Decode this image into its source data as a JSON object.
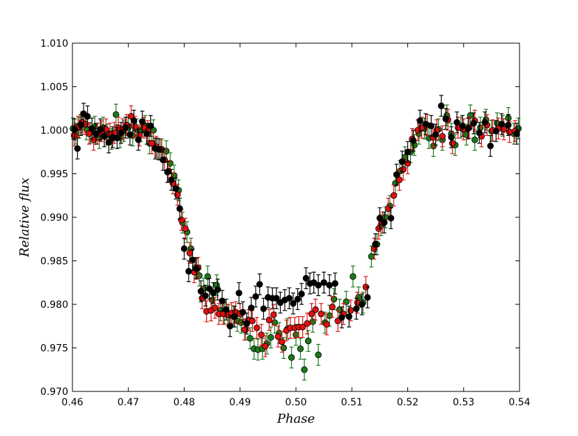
{
  "chart_data": {
    "type": "scatter",
    "title": "",
    "xlabel": "Phase",
    "ylabel": "Relative flux",
    "xlim": [
      0.46,
      0.54
    ],
    "ylim": [
      0.97,
      1.01
    ],
    "x_ticks": [
      0.46,
      0.47,
      0.48,
      0.49,
      0.5,
      0.51,
      0.52,
      0.53,
      0.54
    ],
    "x_tick_labels": [
      "0.46",
      "0.47",
      "0.48",
      "0.49",
      "0.50",
      "0.51",
      "0.52",
      "0.53",
      "0.54"
    ],
    "y_ticks": [
      0.97,
      0.975,
      0.98,
      0.985,
      0.99,
      0.995,
      1.0,
      1.005,
      1.01
    ],
    "y_tick_labels": [
      "0.970",
      "0.975",
      "0.980",
      "0.985",
      "0.990",
      "0.995",
      "1.000",
      "1.005",
      "1.010"
    ],
    "grid": false,
    "legend": "none",
    "series": [
      {
        "color": "#1a7a1a",
        "points": [
          [
            0.4601,
            1.0002
          ],
          [
            0.4606,
            0.9996
          ],
          [
            0.4612,
            1.0003
          ],
          [
            0.4618,
            1.0007
          ],
          [
            0.4625,
            1.0001
          ],
          [
            0.4632,
            0.9997
          ],
          [
            0.464,
            1.0004
          ],
          [
            0.4648,
            0.9991
          ],
          [
            0.4655,
            1.0003
          ],
          [
            0.4662,
            0.9995
          ],
          [
            0.467,
            0.999
          ],
          [
            0.4678,
            1.0018
          ],
          [
            0.4685,
            0.9992
          ],
          [
            0.4692,
            0.9999
          ],
          [
            0.47,
            1.0003
          ],
          [
            0.4708,
            0.9994
          ],
          [
            0.4715,
            1.0001
          ],
          [
            0.4722,
            0.9999
          ],
          [
            0.473,
            1.0005
          ],
          [
            0.4738,
            0.9985
          ],
          [
            0.4745,
            1.0
          ],
          [
            0.4752,
            0.9979
          ],
          [
            0.476,
            0.9978
          ],
          [
            0.4768,
            0.9976
          ],
          [
            0.4775,
            0.9962
          ],
          [
            0.4782,
            0.9948
          ],
          [
            0.479,
            0.9931
          ],
          [
            0.4797,
            0.9894
          ],
          [
            0.4805,
            0.9883
          ],
          [
            0.4812,
            0.9864
          ],
          [
            0.482,
            0.9842
          ],
          [
            0.4827,
            0.9833
          ],
          [
            0.4835,
            0.9818
          ],
          [
            0.4842,
            0.9832
          ],
          [
            0.485,
            0.9805
          ],
          [
            0.4858,
            0.9822
          ],
          [
            0.4865,
            0.9793
          ],
          [
            0.4872,
            0.979
          ],
          [
            0.488,
            0.9788
          ],
          [
            0.4888,
            0.9786
          ],
          [
            0.4895,
            0.9781
          ],
          [
            0.4902,
            0.9779
          ],
          [
            0.491,
            0.9771
          ],
          [
            0.4918,
            0.9761
          ],
          [
            0.4925,
            0.9749
          ],
          [
            0.4932,
            0.9748
          ],
          [
            0.494,
            0.9749
          ],
          [
            0.4948,
            0.9755
          ],
          [
            0.4955,
            0.9762
          ],
          [
            0.4962,
            0.9779
          ],
          [
            0.497,
            0.9767
          ],
          [
            0.4978,
            0.975
          ],
          [
            0.4985,
            0.9772
          ],
          [
            0.4992,
            0.9739
          ],
          [
            0.5,
            0.9765
          ],
          [
            0.5008,
            0.9749
          ],
          [
            0.5015,
            0.9725
          ],
          [
            0.5022,
            0.9758
          ],
          [
            0.503,
            0.978
          ],
          [
            0.504,
            0.9742
          ],
          [
            0.5052,
            0.9779
          ],
          [
            0.506,
            0.9787
          ],
          [
            0.5068,
            0.9806
          ],
          [
            0.5078,
            0.9794
          ],
          [
            0.509,
            0.9803
          ],
          [
            0.5102,
            0.9832
          ],
          [
            0.5112,
            0.9808
          ],
          [
            0.512,
            0.9802
          ],
          [
            0.5135,
            0.9855
          ],
          [
            0.5145,
            0.9869
          ],
          [
            0.5152,
            0.9891
          ],
          [
            0.516,
            0.99
          ],
          [
            0.5168,
            0.9913
          ],
          [
            0.5178,
            0.9939
          ],
          [
            0.5186,
            0.9953
          ],
          [
            0.5195,
            0.9969
          ],
          [
            0.5205,
            0.9975
          ],
          [
            0.5212,
            0.9983
          ],
          [
            0.522,
            0.9996
          ],
          [
            0.523,
            1.0002
          ],
          [
            0.5238,
            0.9991
          ],
          [
            0.5246,
            0.9982
          ],
          [
            0.5255,
            1.0001
          ],
          [
            0.5262,
            0.9989
          ],
          [
            0.527,
            1.0017
          ],
          [
            0.5278,
            0.9996
          ],
          [
            0.5285,
            0.9983
          ],
          [
            0.5295,
            1.0003
          ],
          [
            0.5305,
            0.9995
          ],
          [
            0.5312,
            1.0017
          ],
          [
            0.532,
            0.9989
          ],
          [
            0.533,
            1.0003
          ],
          [
            0.534,
            1.0012
          ],
          [
            0.535,
            0.9999
          ],
          [
            0.536,
            1.0008
          ],
          [
            0.537,
            1.0005
          ],
          [
            0.538,
            1.0014
          ],
          [
            0.539,
            0.9996
          ],
          [
            0.5398,
            1.0002
          ]
        ]
      },
      {
        "color": "#e01010",
        "points": [
          [
            0.4603,
            0.9994
          ],
          [
            0.461,
            1.0004
          ],
          [
            0.4617,
            1.0009
          ],
          [
            0.4623,
            1.0007
          ],
          [
            0.463,
            0.9996
          ],
          [
            0.4638,
            0.9989
          ],
          [
            0.4645,
            0.9996
          ],
          [
            0.4652,
            0.9999
          ],
          [
            0.466,
            1.0001
          ],
          [
            0.4667,
            0.9996
          ],
          [
            0.4675,
            0.9997
          ],
          [
            0.4682,
            1.0003
          ],
          [
            0.469,
            1.0001
          ],
          [
            0.4697,
            1.0006
          ],
          [
            0.4705,
            1.0016
          ],
          [
            0.4712,
            1.0004
          ],
          [
            0.472,
            0.9994
          ],
          [
            0.4728,
            1.0003
          ],
          [
            0.4735,
            0.9999
          ],
          [
            0.4742,
            0.9985
          ],
          [
            0.475,
            0.9981
          ],
          [
            0.4758,
            0.9978
          ],
          [
            0.4765,
            0.9966
          ],
          [
            0.4772,
            0.9953
          ],
          [
            0.478,
            0.9939
          ],
          [
            0.4788,
            0.9926
          ],
          [
            0.4795,
            0.9897
          ],
          [
            0.4802,
            0.9887
          ],
          [
            0.481,
            0.9859
          ],
          [
            0.4818,
            0.9837
          ],
          [
            0.4825,
            0.9842
          ],
          [
            0.4832,
            0.9807
          ],
          [
            0.484,
            0.9792
          ],
          [
            0.4848,
            0.9793
          ],
          [
            0.4855,
            0.9796
          ],
          [
            0.4862,
            0.9789
          ],
          [
            0.487,
            0.9789
          ],
          [
            0.4878,
            0.9788
          ],
          [
            0.4885,
            0.979
          ],
          [
            0.4892,
            0.9791
          ],
          [
            0.49,
            0.9789
          ],
          [
            0.4908,
            0.9771
          ],
          [
            0.4915,
            0.9782
          ],
          [
            0.4922,
            0.9781
          ],
          [
            0.493,
            0.9773
          ],
          [
            0.4938,
            0.9765
          ],
          [
            0.4945,
            0.9752
          ],
          [
            0.4952,
            0.9782
          ],
          [
            0.496,
            0.9788
          ],
          [
            0.4968,
            0.9763
          ],
          [
            0.4975,
            0.9757
          ],
          [
            0.4983,
            0.977
          ],
          [
            0.499,
            0.9773
          ],
          [
            0.4998,
            0.9773
          ],
          [
            0.5005,
            0.9774
          ],
          [
            0.5012,
            0.9774
          ],
          [
            0.502,
            0.9778
          ],
          [
            0.5028,
            0.9789
          ],
          [
            0.5035,
            0.9794
          ],
          [
            0.5045,
            0.9789
          ],
          [
            0.5055,
            0.9777
          ],
          [
            0.5065,
            0.9797
          ],
          [
            0.5075,
            0.9781
          ],
          [
            0.5085,
            0.9789
          ],
          [
            0.5098,
            0.9793
          ],
          [
            0.511,
            0.9802
          ],
          [
            0.5125,
            0.982
          ],
          [
            0.514,
            0.9864
          ],
          [
            0.5148,
            0.9887
          ],
          [
            0.5155,
            0.9894
          ],
          [
            0.5165,
            0.991
          ],
          [
            0.5175,
            0.9925
          ],
          [
            0.5185,
            0.9943
          ],
          [
            0.5192,
            0.9955
          ],
          [
            0.52,
            0.9962
          ],
          [
            0.5208,
            0.999
          ],
          [
            0.5218,
            1.0
          ],
          [
            0.5225,
            1.0003
          ],
          [
            0.5235,
            1.0006
          ],
          [
            0.5245,
            0.9992
          ],
          [
            0.5252,
            1.0
          ],
          [
            0.5262,
            0.9993
          ],
          [
            0.5272,
            1.0012
          ],
          [
            0.528,
            0.9985
          ],
          [
            0.529,
            1.0003
          ],
          [
            0.53,
            1.0001
          ],
          [
            0.531,
            1.0003
          ],
          [
            0.532,
            1.0011
          ],
          [
            0.5332,
            0.9993
          ],
          [
            0.5342,
            1.0006
          ],
          [
            0.5352,
            1.0
          ],
          [
            0.5362,
            1.0002
          ],
          [
            0.5372,
            1.0001
          ],
          [
            0.5382,
            0.9998
          ],
          [
            0.5392,
            0.9999
          ]
        ]
      },
      {
        "color": "#000000",
        "points": [
          [
            0.4604,
            1.0001
          ],
          [
            0.4609,
            0.9979
          ],
          [
            0.4615,
            1.0006
          ],
          [
            0.462,
            1.0019
          ],
          [
            0.4627,
            1.0016
          ],
          [
            0.4635,
            1.0002
          ],
          [
            0.4642,
            0.9996
          ],
          [
            0.465,
            1.0001
          ],
          [
            0.4657,
            0.9993
          ],
          [
            0.4665,
            0.9986
          ],
          [
            0.4672,
            0.9992
          ],
          [
            0.468,
            0.9991
          ],
          [
            0.4687,
            0.9997
          ],
          [
            0.4695,
            1.0003
          ],
          [
            0.4703,
            0.9995
          ],
          [
            0.471,
            1.0011
          ],
          [
            0.4718,
            0.9989
          ],
          [
            0.4725,
            1.001
          ],
          [
            0.4733,
            0.9996
          ],
          [
            0.474,
            1.0005
          ],
          [
            0.4748,
            0.9979
          ],
          [
            0.4755,
            0.9978
          ],
          [
            0.4762,
            0.9966
          ],
          [
            0.477,
            0.9952
          ],
          [
            0.4777,
            0.9943
          ],
          [
            0.4785,
            0.9933
          ],
          [
            0.4792,
            0.991
          ],
          [
            0.48,
            0.9864
          ],
          [
            0.4808,
            0.9838
          ],
          [
            0.4815,
            0.9851
          ],
          [
            0.4822,
            0.9841
          ],
          [
            0.483,
            0.9815
          ],
          [
            0.4838,
            0.981
          ],
          [
            0.4845,
            0.9818
          ],
          [
            0.4852,
            0.9813
          ],
          [
            0.486,
            0.9817
          ],
          [
            0.4868,
            0.9804
          ],
          [
            0.4875,
            0.9794
          ],
          [
            0.4882,
            0.9775
          ],
          [
            0.489,
            0.9786
          ],
          [
            0.4898,
            0.9813
          ],
          [
            0.4905,
            0.9791
          ],
          [
            0.4912,
            0.9778
          ],
          [
            0.492,
            0.9796
          ],
          [
            0.4928,
            0.9809
          ],
          [
            0.4935,
            0.9823
          ],
          [
            0.4942,
            0.9795
          ],
          [
            0.495,
            0.9808
          ],
          [
            0.4958,
            0.9807
          ],
          [
            0.4965,
            0.9807
          ],
          [
            0.4972,
            0.9802
          ],
          [
            0.498,
            0.9805
          ],
          [
            0.4988,
            0.9807
          ],
          [
            0.4995,
            0.9801
          ],
          [
            0.5003,
            0.9806
          ],
          [
            0.501,
            0.9812
          ],
          [
            0.5018,
            0.983
          ],
          [
            0.5025,
            0.9824
          ],
          [
            0.5032,
            0.9825
          ],
          [
            0.504,
            0.9822
          ],
          [
            0.505,
            0.9825
          ],
          [
            0.506,
            0.9822
          ],
          [
            0.507,
            0.9824
          ],
          [
            0.5082,
            0.9785
          ],
          [
            0.5095,
            0.9786
          ],
          [
            0.5108,
            0.9795
          ],
          [
            0.5118,
            0.98
          ],
          [
            0.5128,
            0.9808
          ],
          [
            0.5142,
            0.9869
          ],
          [
            0.515,
            0.9899
          ],
          [
            0.5158,
            0.9894
          ],
          [
            0.517,
            0.9899
          ],
          [
            0.518,
            0.9949
          ],
          [
            0.519,
            0.9964
          ],
          [
            0.52,
            0.9975
          ],
          [
            0.521,
            0.9988
          ],
          [
            0.5222,
            1.0011
          ],
          [
            0.5232,
            1.0007
          ],
          [
            0.5242,
            1.0005
          ],
          [
            0.525,
            0.9995
          ],
          [
            0.526,
            1.0028
          ],
          [
            0.5268,
            1.0013
          ],
          [
            0.5278,
            0.9992
          ],
          [
            0.5288,
            1.0009
          ],
          [
            0.5298,
            1.0005
          ],
          [
            0.5308,
            1.0002
          ],
          [
            0.5318,
            1.0008
          ],
          [
            0.5328,
            0.9997
          ],
          [
            0.5338,
            1.0009
          ],
          [
            0.5348,
            0.9982
          ],
          [
            0.5358,
            0.9999
          ],
          [
            0.5368,
            1.0007
          ],
          [
            0.538,
            1.0006
          ],
          [
            0.5395,
            0.9996
          ]
        ]
      }
    ]
  }
}
